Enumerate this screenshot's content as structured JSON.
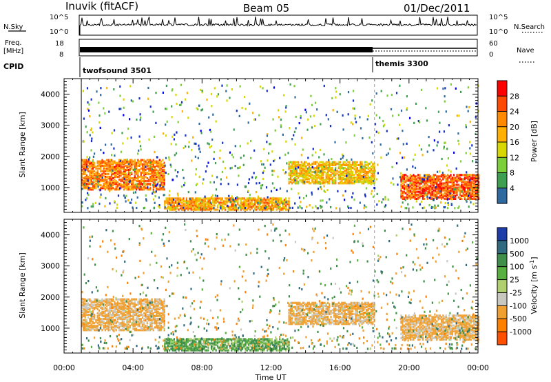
{
  "header": {
    "station": "Inuvik (fitACF)",
    "beam": "Beam 05",
    "date": "01/Dec/2011"
  },
  "top_panels": {
    "nsky_label": "N.Sky",
    "nsky_ticks": [
      "10^5",
      "10^0"
    ],
    "nsearch_label": "N.Search",
    "nsearch_ticks": [
      "10^5",
      "10^0"
    ],
    "freq_label": "Freq.",
    "freq_unit": "[MHz]",
    "freq_ticks": [
      "18",
      "8"
    ],
    "nave_label": "Nave",
    "nave_ticks": [
      "60",
      "0"
    ],
    "cpid_label": "CPID",
    "cpid_segments": [
      {
        "name": "twofsound 3501",
        "start_hour": 1.0
      },
      {
        "name": "themis 3300",
        "start_hour": 18.0
      }
    ]
  },
  "power_colorbar": {
    "label": "Power [dB]",
    "ticks": [
      "28",
      "24",
      "20",
      "16",
      "12",
      "8",
      "4"
    ],
    "colors": [
      "#ff0000",
      "#ff4a00",
      "#ff8a00",
      "#ffb000",
      "#d8d800",
      "#7ccf3a",
      "#3f9f50",
      "#2e6aa0",
      "#1530c8",
      "#0000ff"
    ]
  },
  "velocity_colorbar": {
    "label_main": "Velocity  [m s",
    "label_sup": "-1",
    "label_end": "]",
    "ticks": [
      "1000",
      "500",
      "100",
      "25",
      "-25",
      "-100",
      "-500",
      "-1000"
    ],
    "colors": [
      "#1c3ca8",
      "#2f6a80",
      "#3f8f4a",
      "#58b040",
      "#b0d070",
      "#c8c8c0",
      "#f0a030",
      "#ff8000",
      "#ff5000",
      "#ff0000"
    ]
  },
  "chart_data": [
    {
      "type": "heatmap",
      "title": "",
      "xlabel": "Time UT",
      "ylabel": "Slant Range [km]",
      "x_ticks": [
        "00:00",
        "04:00",
        "08:00",
        "12:00",
        "16:00",
        "20:00",
        "00:00"
      ],
      "y_ticks": [
        "1000",
        "2000",
        "3000",
        "4000"
      ],
      "xlim": [
        0,
        24
      ],
      "ylim": [
        200,
        4500
      ],
      "colorbar": "Power [dB]",
      "regions": [
        {
          "t0": 1.0,
          "t1": 5.8,
          "r0": 900,
          "r1": 1850,
          "value_db": 26
        },
        {
          "t0": 5.8,
          "t1": 13.0,
          "r0": 250,
          "r1": 650,
          "value_db": 24
        },
        {
          "t0": 13.0,
          "t1": 18.0,
          "r0": 1100,
          "r1": 1800,
          "value_db": 22
        },
        {
          "t0": 19.5,
          "t1": 24.0,
          "r0": 600,
          "r1": 1400,
          "value_db": 28
        }
      ]
    },
    {
      "type": "heatmap",
      "title": "",
      "xlabel": "Time UT",
      "ylabel": "Slant Range [km]",
      "x_ticks": [
        "00:00",
        "04:00",
        "08:00",
        "12:00",
        "16:00",
        "20:00",
        "00:00"
      ],
      "y_ticks": [
        "1000",
        "2000",
        "3000",
        "4000"
      ],
      "xlim": [
        0,
        24
      ],
      "ylim": [
        200,
        4500
      ],
      "colorbar": "Velocity [m s-1]",
      "regions": [
        {
          "t0": 1.0,
          "t1": 5.8,
          "r0": 900,
          "r1": 1900,
          "value_ms": -150
        },
        {
          "t0": 5.8,
          "t1": 13.0,
          "r0": 250,
          "r1": 650,
          "value_ms": 100
        },
        {
          "t0": 13.0,
          "t1": 18.0,
          "r0": 1100,
          "r1": 1800,
          "value_ms": -150
        },
        {
          "t0": 19.5,
          "t1": 24.0,
          "r0": 600,
          "r1": 1400,
          "value_ms": -150
        }
      ]
    }
  ]
}
